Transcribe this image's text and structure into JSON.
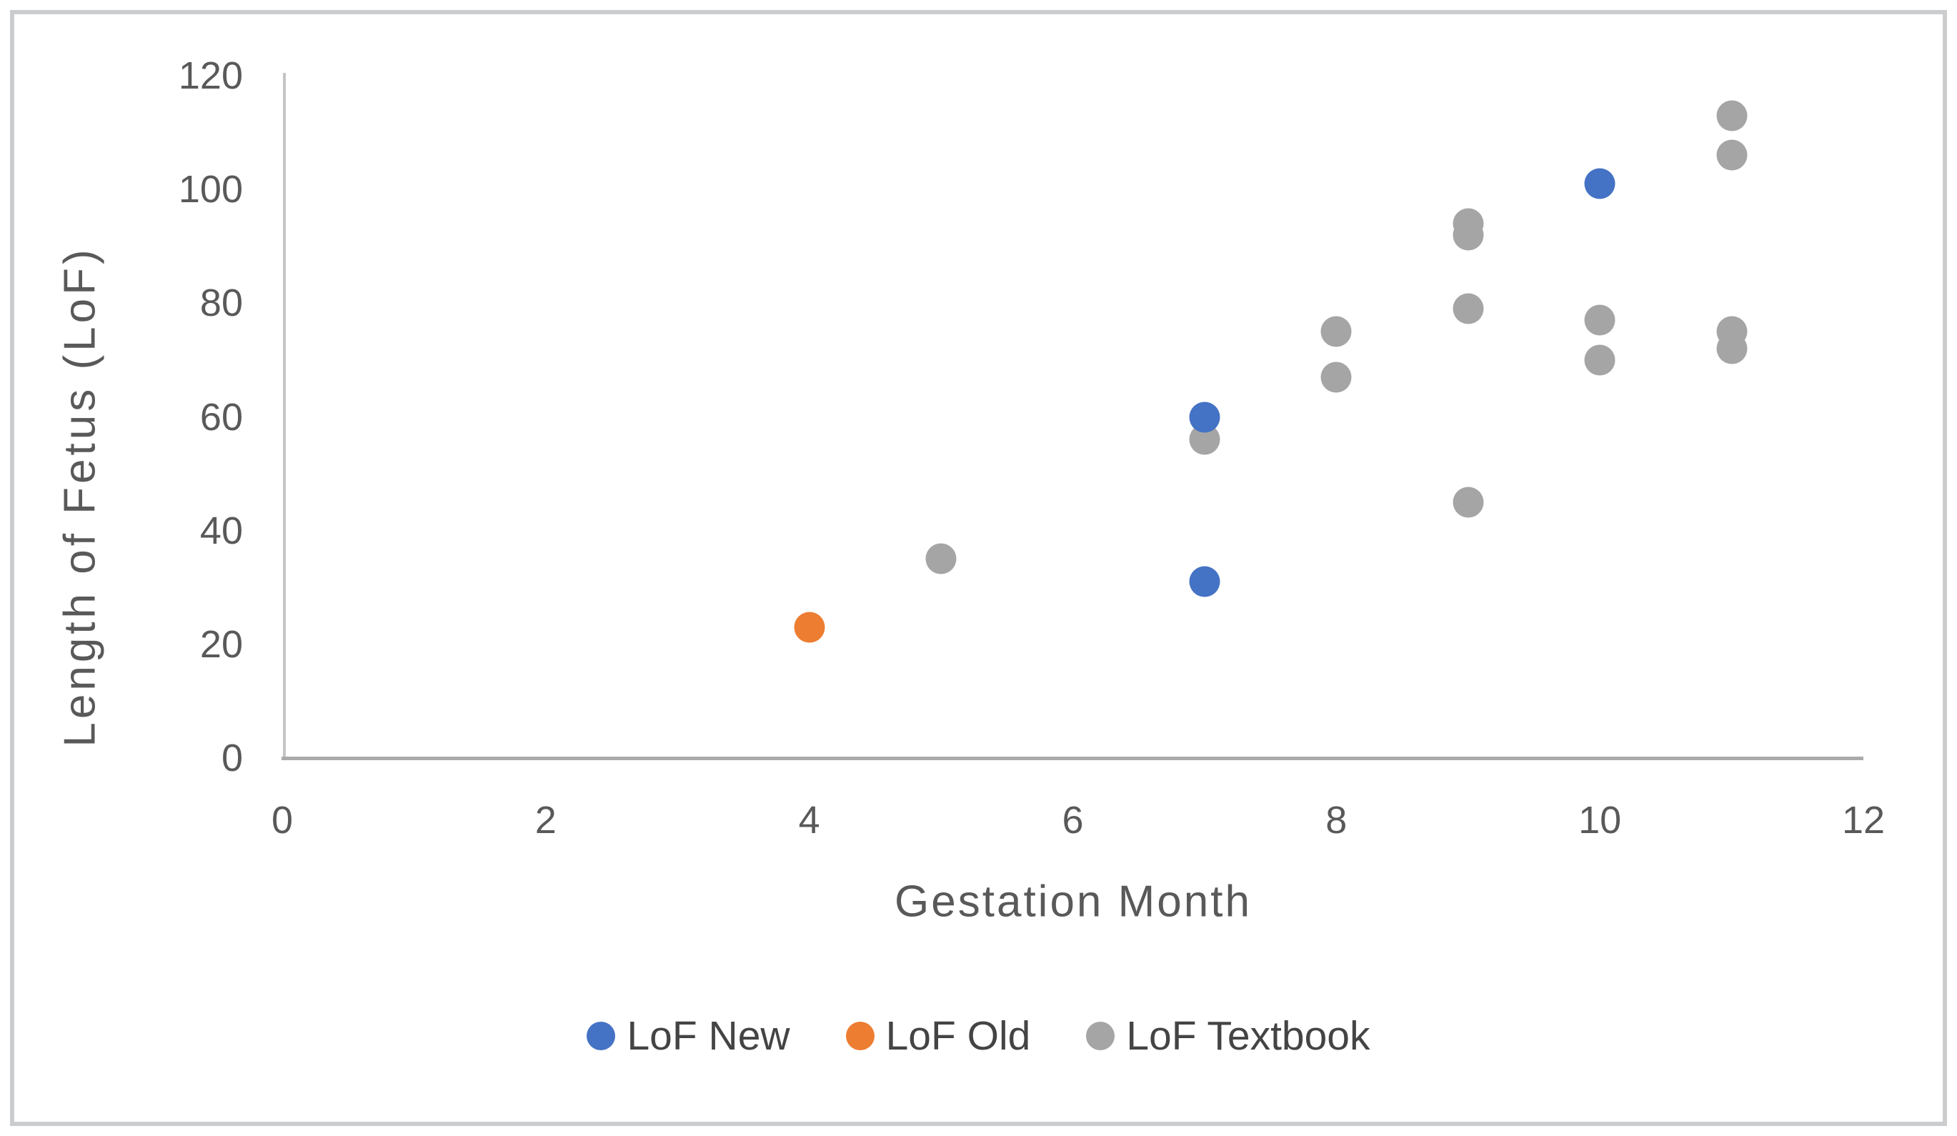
{
  "figure": {
    "background": "#ffffff",
    "border_color": "#cacccd",
    "text_color": "#595959",
    "axis_line_color": "#b5b7b8"
  },
  "chart_data": {
    "type": "scatter",
    "title": "",
    "xlabel": "Gestation Month",
    "ylabel": "Length of Fetus (LoF)",
    "xlim": [
      0,
      12
    ],
    "ylim": [
      0,
      120
    ],
    "x_ticks": [
      0,
      2,
      4,
      6,
      8,
      10,
      12
    ],
    "y_ticks": [
      0,
      20,
      40,
      60,
      80,
      100,
      120
    ],
    "grid": false,
    "legend_position": "bottom-center",
    "series": [
      {
        "name": "LoF New",
        "color": "#4472C4",
        "points": [
          [
            7,
            60
          ],
          [
            7,
            31
          ],
          [
            10,
            101
          ]
        ]
      },
      {
        "name": "LoF Old",
        "color": "#ED7D31",
        "points": [
          [
            4,
            23
          ]
        ]
      },
      {
        "name": "LoF Textbook",
        "color": "#A5A5A5",
        "points": [
          [
            5,
            35
          ],
          [
            7,
            56
          ],
          [
            8,
            75
          ],
          [
            8,
            67
          ],
          [
            9,
            94
          ],
          [
            9,
            92
          ],
          [
            9,
            79
          ],
          [
            9,
            45
          ],
          [
            10,
            77
          ],
          [
            10,
            70
          ],
          [
            11,
            113
          ],
          [
            11,
            106
          ],
          [
            11,
            75
          ],
          [
            11,
            72
          ]
        ]
      }
    ]
  }
}
